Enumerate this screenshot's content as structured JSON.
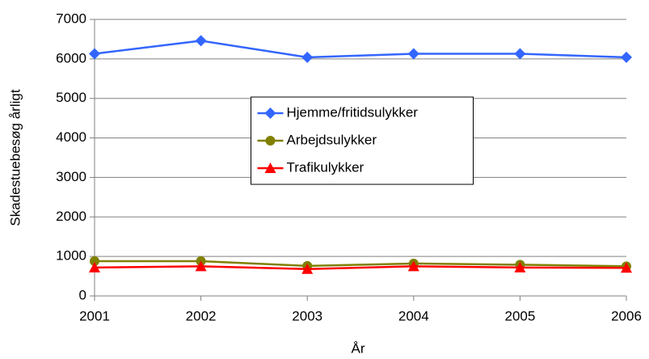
{
  "chart_data": {
    "type": "line",
    "x": [
      2001,
      2002,
      2003,
      2004,
      2005,
      2006
    ],
    "series": [
      {
        "name": "Hjemme/fritidsulykker",
        "color": "#3366ff",
        "marker": "diamond",
        "values": [
          6130,
          6460,
          6040,
          6130,
          6130,
          6040
        ]
      },
      {
        "name": "Arbejdsulykker",
        "color": "#808000",
        "marker": "circle",
        "values": [
          880,
          880,
          760,
          820,
          790,
          750
        ]
      },
      {
        "name": "Trafikulykker",
        "color": "#ff0000",
        "marker": "triangle",
        "values": [
          720,
          750,
          680,
          750,
          720,
          710
        ]
      }
    ],
    "xlim": [
      2001,
      2006
    ],
    "xticks": [
      2001,
      2002,
      2003,
      2004,
      2005,
      2006
    ],
    "ylim": [
      0,
      7000
    ],
    "yticks": [
      0,
      1000,
      2000,
      3000,
      4000,
      5000,
      6000,
      7000
    ],
    "xlabel": "År",
    "ylabel": "Skadestuebesøg årligt",
    "grid": true,
    "legend": "center"
  }
}
